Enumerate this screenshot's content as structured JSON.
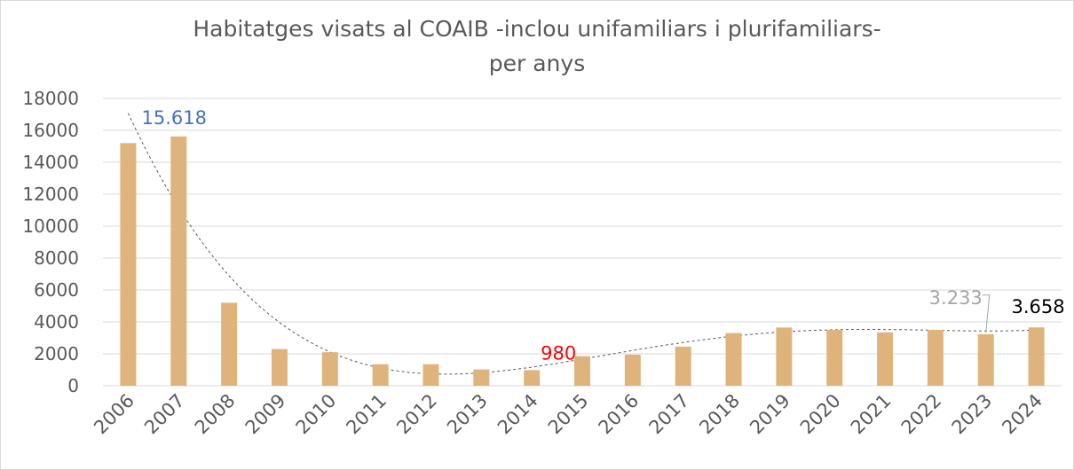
{
  "chart_data": {
    "type": "bar",
    "title_line1": "Habitatges visats al COAIB -inclou unifamiliars i plurifamiliars-",
    "title_line2": "per anys",
    "categories": [
      "2006",
      "2007",
      "2008",
      "2009",
      "2010",
      "2011",
      "2012",
      "2013",
      "2014",
      "2015",
      "2016",
      "2017",
      "2018",
      "2019",
      "2020",
      "2021",
      "2022",
      "2023",
      "2024"
    ],
    "values": [
      15200,
      15618,
      5200,
      2300,
      2100,
      1350,
      1350,
      1020,
      980,
      1850,
      1950,
      2450,
      3300,
      3650,
      3500,
      3350,
      3500,
      3233,
      3658
    ],
    "ylim": [
      0,
      18000
    ],
    "yticks": [
      "0",
      "2000",
      "4000",
      "6000",
      "8000",
      "10000",
      "12000",
      "14000",
      "16000",
      "18000"
    ],
    "grid": true,
    "bar_color": "#dfb47c",
    "trendline": {
      "style": "dotted",
      "color": "#595959"
    },
    "data_labels": [
      {
        "category": "2007",
        "text": "15.618",
        "color": "#4472c4"
      },
      {
        "category": "2014",
        "text": "980",
        "color": "#ff0000"
      },
      {
        "category": "2023",
        "text": "3.233",
        "color": "#a6a6a6"
      },
      {
        "category": "2024",
        "text": "3.658",
        "color": "#000000"
      }
    ]
  }
}
